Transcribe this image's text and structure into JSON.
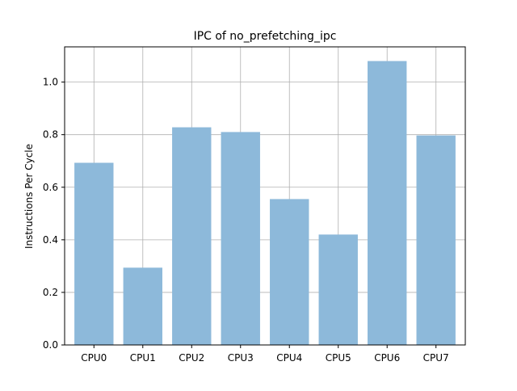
{
  "chart_data": {
    "type": "bar",
    "title": "IPC of no_prefetching_ipc",
    "xlabel": "",
    "ylabel": "Instructions Per Cycle",
    "categories": [
      "CPU0",
      "CPU1",
      "CPU2",
      "CPU3",
      "CPU4",
      "CPU5",
      "CPU6",
      "CPU7"
    ],
    "values": [
      0.693,
      0.294,
      0.828,
      0.81,
      0.555,
      0.42,
      1.08,
      0.797
    ],
    "ylim": [
      0,
      1.134
    ],
    "yticks": [
      0.0,
      0.2,
      0.4,
      0.6,
      0.8,
      1.0
    ],
    "ytick_labels": [
      "0.0",
      "0.2",
      "0.4",
      "0.6",
      "0.8",
      "1.0"
    ],
    "grid": true,
    "bar_color": "#8db9da",
    "grid_color": "#b0b0b0",
    "axis_color": "#000000"
  }
}
